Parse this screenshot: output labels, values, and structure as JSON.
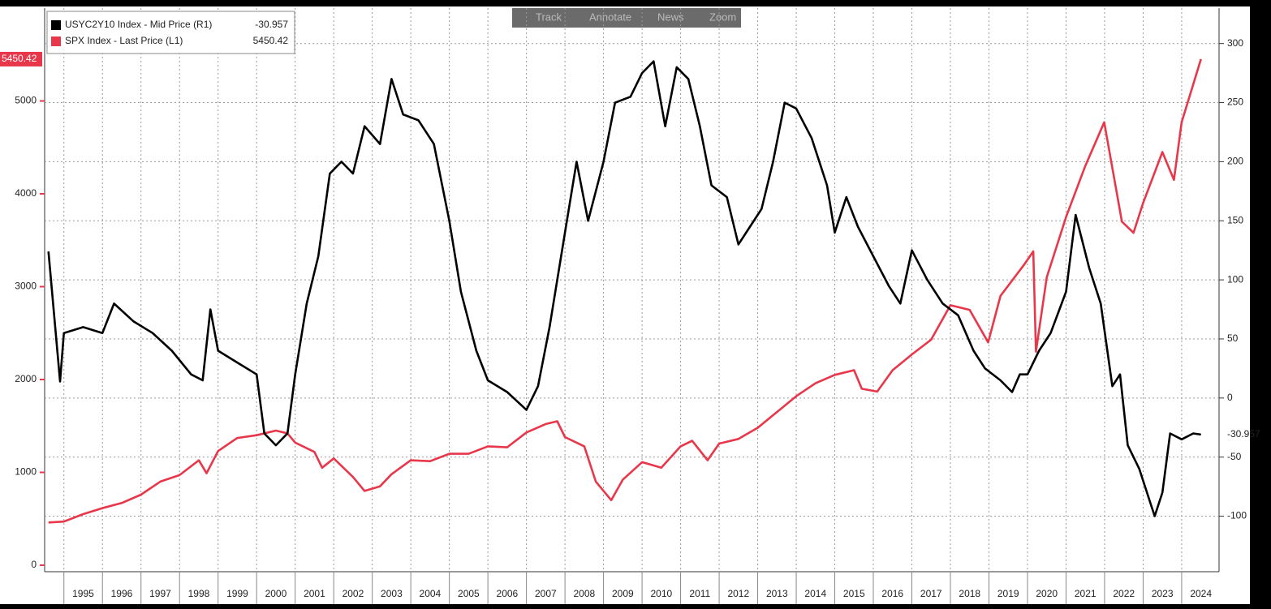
{
  "toolbar": [
    "Track",
    "Annotate",
    "News",
    "Zoom"
  ],
  "chart_data": {
    "type": "line",
    "xlim": [
      1994.5,
      2024.97
    ],
    "xticks": [
      1995,
      1996,
      1997,
      1998,
      1999,
      2000,
      2001,
      2002,
      2003,
      2004,
      2005,
      2006,
      2007,
      2008,
      2009,
      2010,
      2011,
      2012,
      2013,
      2014,
      2015,
      2016,
      2017,
      2018,
      2019,
      2020,
      2021,
      2022,
      2023,
      2024
    ],
    "ylim": [
      -70,
      6000
    ],
    "yticks": [
      0,
      1000,
      2000,
      3000,
      4000,
      5000
    ],
    "y2lim": [
      -147,
      330
    ],
    "y2ticks": [
      -100,
      -50,
      0,
      50,
      100,
      150,
      200,
      250,
      300
    ],
    "grid": true,
    "legend": "top-left",
    "series": [
      {
        "name": "USYC2Y10 Index - Mid Price (R1)",
        "color": "#000000",
        "axis": "y2",
        "x": [
          1994.6,
          1994.9,
          1995.0,
          1995.5,
          1996.0,
          1996.3,
          1996.8,
          1997.3,
          1997.8,
          1998.3,
          1998.6,
          1998.8,
          1999.0,
          1999.5,
          2000.0,
          2000.2,
          2000.5,
          2000.8,
          2001.0,
          2001.3,
          2001.6,
          2001.9,
          2002.2,
          2002.5,
          2002.8,
          2003.2,
          2003.5,
          2003.8,
          2004.2,
          2004.6,
          2005.0,
          2005.3,
          2005.7,
          2006.0,
          2006.5,
          2007.0,
          2007.3,
          2007.6,
          2008.0,
          2008.3,
          2008.6,
          2009.0,
          2009.3,
          2009.7,
          2010.0,
          2010.3,
          2010.6,
          2010.9,
          2011.2,
          2011.5,
          2011.8,
          2012.2,
          2012.5,
          2012.8,
          2013.1,
          2013.4,
          2013.7,
          2014.0,
          2014.4,
          2014.8,
          2015.0,
          2015.3,
          2015.6,
          2016.0,
          2016.4,
          2016.7,
          2017.0,
          2017.4,
          2017.8,
          2018.2,
          2018.6,
          2018.9,
          2019.3,
          2019.6,
          2019.8,
          2020.0,
          2020.3,
          2020.6,
          2021.0,
          2021.25,
          2021.6,
          2021.9,
          2022.2,
          2022.4,
          2022.6,
          2022.9,
          2023.2,
          2023.3,
          2023.5,
          2023.7,
          2024.0,
          2024.3,
          2024.5
        ],
        "values": [
          124,
          14,
          55,
          60,
          55,
          80,
          65,
          55,
          40,
          20,
          15,
          75,
          40,
          30,
          20,
          -30,
          -40,
          -30,
          20,
          80,
          120,
          190,
          200,
          190,
          230,
          215,
          270,
          240,
          235,
          215,
          150,
          90,
          40,
          15,
          5,
          -10,
          10,
          60,
          140,
          200,
          150,
          200,
          250,
          255,
          275,
          285,
          230,
          280,
          270,
          230,
          180,
          170,
          130,
          145,
          160,
          200,
          250,
          245,
          220,
          180,
          140,
          170,
          145,
          120,
          95,
          80,
          125,
          100,
          80,
          70,
          40,
          25,
          15,
          5,
          20,
          20,
          40,
          55,
          90,
          155,
          110,
          80,
          10,
          20,
          -40,
          -60,
          -90,
          -100,
          -80,
          -30,
          -35,
          -30,
          -30.957
        ]
      },
      {
        "name": "SPX Index - Last Price (L1)",
        "color": "#e8374a",
        "x": [
          1994.6,
          1995.0,
          1995.5,
          1996.0,
          1996.5,
          1997.0,
          1997.5,
          1998.0,
          1998.5,
          1998.7,
          1999.0,
          1999.5,
          2000.0,
          2000.5,
          2000.8,
          2001.0,
          2001.5,
          2001.7,
          2002.0,
          2002.5,
          2002.8,
          2003.2,
          2003.5,
          2004.0,
          2004.5,
          2005.0,
          2005.5,
          2006.0,
          2006.5,
          2007.0,
          2007.5,
          2007.8,
          2008.0,
          2008.5,
          2008.8,
          2009.2,
          2009.5,
          2010.0,
          2010.5,
          2011.0,
          2011.3,
          2011.7,
          2012.0,
          2012.5,
          2013.0,
          2013.5,
          2014.0,
          2014.5,
          2015.0,
          2015.5,
          2015.7,
          2016.1,
          2016.5,
          2017.0,
          2017.5,
          2018.0,
          2018.5,
          2018.98,
          2019.3,
          2019.9,
          2020.15,
          2020.22,
          2020.5,
          2021.0,
          2021.5,
          2021.99,
          2022.45,
          2022.75,
          2023.0,
          2023.5,
          2023.8,
          2024.0,
          2024.5
        ],
        "values": [
          460,
          470,
          550,
          615,
          670,
          760,
          900,
          970,
          1130,
          990,
          1230,
          1370,
          1400,
          1450,
          1420,
          1320,
          1220,
          1050,
          1150,
          950,
          800,
          850,
          980,
          1130,
          1120,
          1200,
          1200,
          1280,
          1270,
          1430,
          1520,
          1550,
          1380,
          1280,
          900,
          700,
          920,
          1110,
          1050,
          1280,
          1340,
          1130,
          1310,
          1360,
          1480,
          1650,
          1820,
          1960,
          2050,
          2100,
          1900,
          1870,
          2100,
          2270,
          2430,
          2800,
          2750,
          2400,
          2900,
          3230,
          3380,
          2300,
          3100,
          3750,
          4300,
          4770,
          3700,
          3580,
          3900,
          4450,
          4150,
          4770,
          5450.42
        ]
      }
    ]
  }
}
